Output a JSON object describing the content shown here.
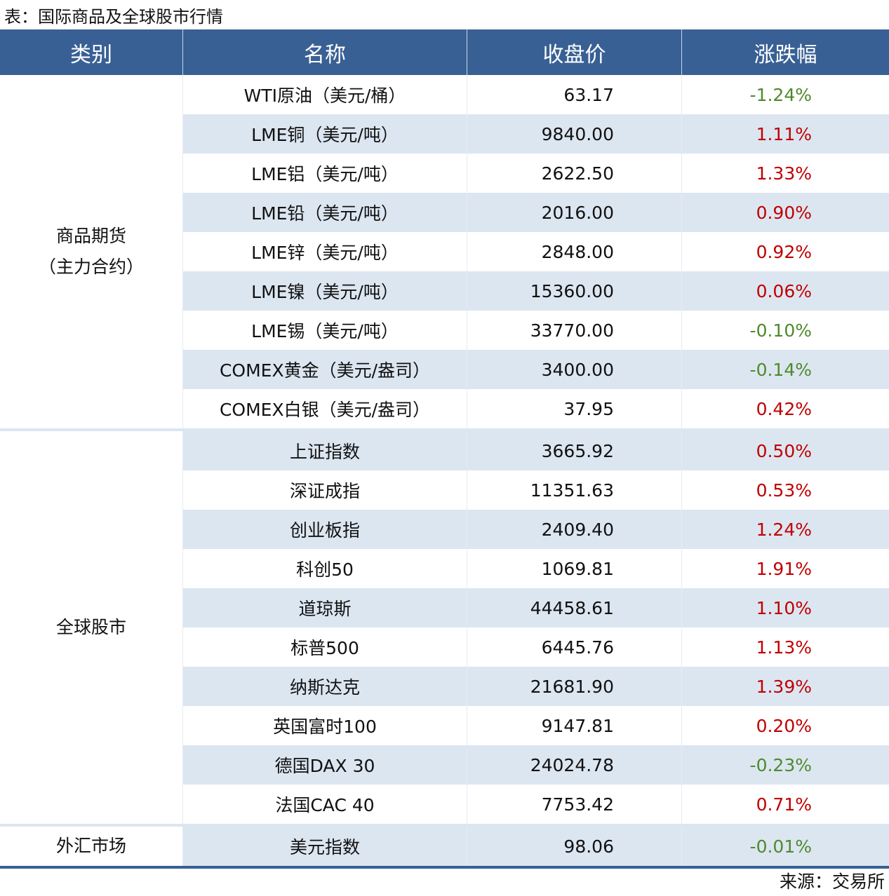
{
  "title": "表：国际商品及全球股市行情",
  "headers": [
    "类别",
    "名称",
    "收盘价",
    "涨跌幅"
  ],
  "colors": {
    "header_bg": "#386094",
    "row_shade": "#dce6f1",
    "up": "#c00000",
    "down": "#4e8a2c"
  },
  "groups": [
    {
      "category": "商品期货\n（主力合约）",
      "rows": [
        {
          "name": "WTI原油（美元/桶）",
          "price": "63.17",
          "change": "-1.24%"
        },
        {
          "name": "LME铜（美元/吨）",
          "price": "9840.00",
          "change": "1.11%"
        },
        {
          "name": "LME铝（美元/吨）",
          "price": "2622.50",
          "change": "1.33%"
        },
        {
          "name": "LME铅（美元/吨）",
          "price": "2016.00",
          "change": "0.90%"
        },
        {
          "name": "LME锌（美元/吨）",
          "price": "2848.00",
          "change": "0.92%"
        },
        {
          "name": "LME镍（美元/吨）",
          "price": "15360.00",
          "change": "0.06%"
        },
        {
          "name": "LME锡（美元/吨）",
          "price": "33770.00",
          "change": "-0.10%"
        },
        {
          "name": "COMEX黄金（美元/盎司）",
          "price": "3400.00",
          "change": "-0.14%"
        },
        {
          "name": "COMEX白银（美元/盎司）",
          "price": "37.95",
          "change": "0.42%"
        }
      ]
    },
    {
      "category": "全球股市",
      "rows": [
        {
          "name": "上证指数",
          "price": "3665.92",
          "change": "0.50%"
        },
        {
          "name": "深证成指",
          "price": "11351.63",
          "change": "0.53%"
        },
        {
          "name": "创业板指",
          "price": "2409.40",
          "change": "1.24%"
        },
        {
          "name": "科创50",
          "price": "1069.81",
          "change": "1.91%"
        },
        {
          "name": "道琼斯",
          "price": "44458.61",
          "change": "1.10%"
        },
        {
          "name": "标普500",
          "price": "6445.76",
          "change": "1.13%"
        },
        {
          "name": "纳斯达克",
          "price": "21681.90",
          "change": "1.39%"
        },
        {
          "name": "英国富时100",
          "price": "9147.81",
          "change": "0.20%"
        },
        {
          "name": "德国DAX 30",
          "price": "24024.78",
          "change": "-0.23%"
        },
        {
          "name": "法国CAC 40",
          "price": "7753.42",
          "change": "0.71%"
        }
      ]
    },
    {
      "category": "外汇市场",
      "rows": [
        {
          "name": "美元指数",
          "price": "98.06",
          "change": "-0.01%"
        }
      ]
    }
  ],
  "source": "来源：交易所"
}
